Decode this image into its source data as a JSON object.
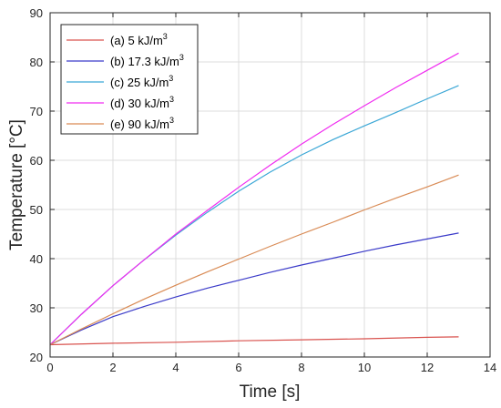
{
  "chart_data": {
    "type": "line",
    "title": "",
    "xlabel": "Time [s]",
    "ylabel": "Temperature [°C]",
    "xlim": [
      0,
      14
    ],
    "ylim": [
      20,
      90
    ],
    "xticks": [
      "0",
      "2",
      "4",
      "6",
      "8",
      "10",
      "12",
      "14"
    ],
    "yticks": [
      "20",
      "30",
      "40",
      "50",
      "60",
      "70",
      "80",
      "90"
    ],
    "grid": true,
    "legend_position": "top-left",
    "series": [
      {
        "name": "(a) 5 kJ/m",
        "name_sup": "3",
        "color": "#d9534f",
        "x": [
          0,
          2,
          4,
          6,
          8,
          10,
          12,
          13
        ],
        "y": [
          22.5,
          22.8,
          23.0,
          23.3,
          23.5,
          23.7,
          24.0,
          24.1
        ]
      },
      {
        "name": "(b) 17.3 kJ/m",
        "name_sup": "3",
        "color": "#3b3bc9",
        "x": [
          0,
          1,
          2,
          3,
          4,
          5,
          6,
          7,
          8,
          9,
          10,
          11,
          12,
          13
        ],
        "y": [
          22.5,
          25.5,
          28.2,
          30.3,
          32.2,
          34.0,
          35.6,
          37.2,
          38.7,
          40.1,
          41.5,
          42.8,
          44.0,
          45.2
        ]
      },
      {
        "name": "(c) 25 kJ/m",
        "name_sup": "3",
        "color": "#3ba7d6",
        "x": [
          0,
          1,
          2,
          3,
          4,
          5,
          6,
          7,
          8,
          9,
          10,
          11,
          12,
          13
        ],
        "y": [
          22.5,
          28.7,
          34.5,
          39.8,
          44.8,
          49.4,
          53.7,
          57.6,
          61.1,
          64.2,
          67.0,
          69.7,
          72.5,
          75.2
        ]
      },
      {
        "name": "(d) 30 kJ/m",
        "name_sup": "3",
        "color": "#f02cf0",
        "x": [
          0,
          1,
          2,
          3,
          4,
          5,
          6,
          7,
          8,
          9,
          10,
          11,
          12,
          13
        ],
        "y": [
          22.5,
          28.7,
          34.5,
          39.8,
          45.0,
          49.8,
          54.5,
          59.0,
          63.3,
          67.3,
          71.1,
          74.8,
          78.3,
          81.8
        ]
      },
      {
        "name": "(e) 90 kJ/m",
        "name_sup": "3",
        "color": "#d98b55",
        "x": [
          0,
          1,
          2,
          3,
          4,
          5,
          6,
          7,
          8,
          9,
          10,
          11,
          12,
          13
        ],
        "y": [
          22.5,
          25.7,
          28.8,
          31.8,
          34.6,
          37.3,
          39.9,
          42.5,
          45.0,
          47.4,
          49.9,
          52.3,
          54.6,
          57.0
        ]
      }
    ]
  }
}
